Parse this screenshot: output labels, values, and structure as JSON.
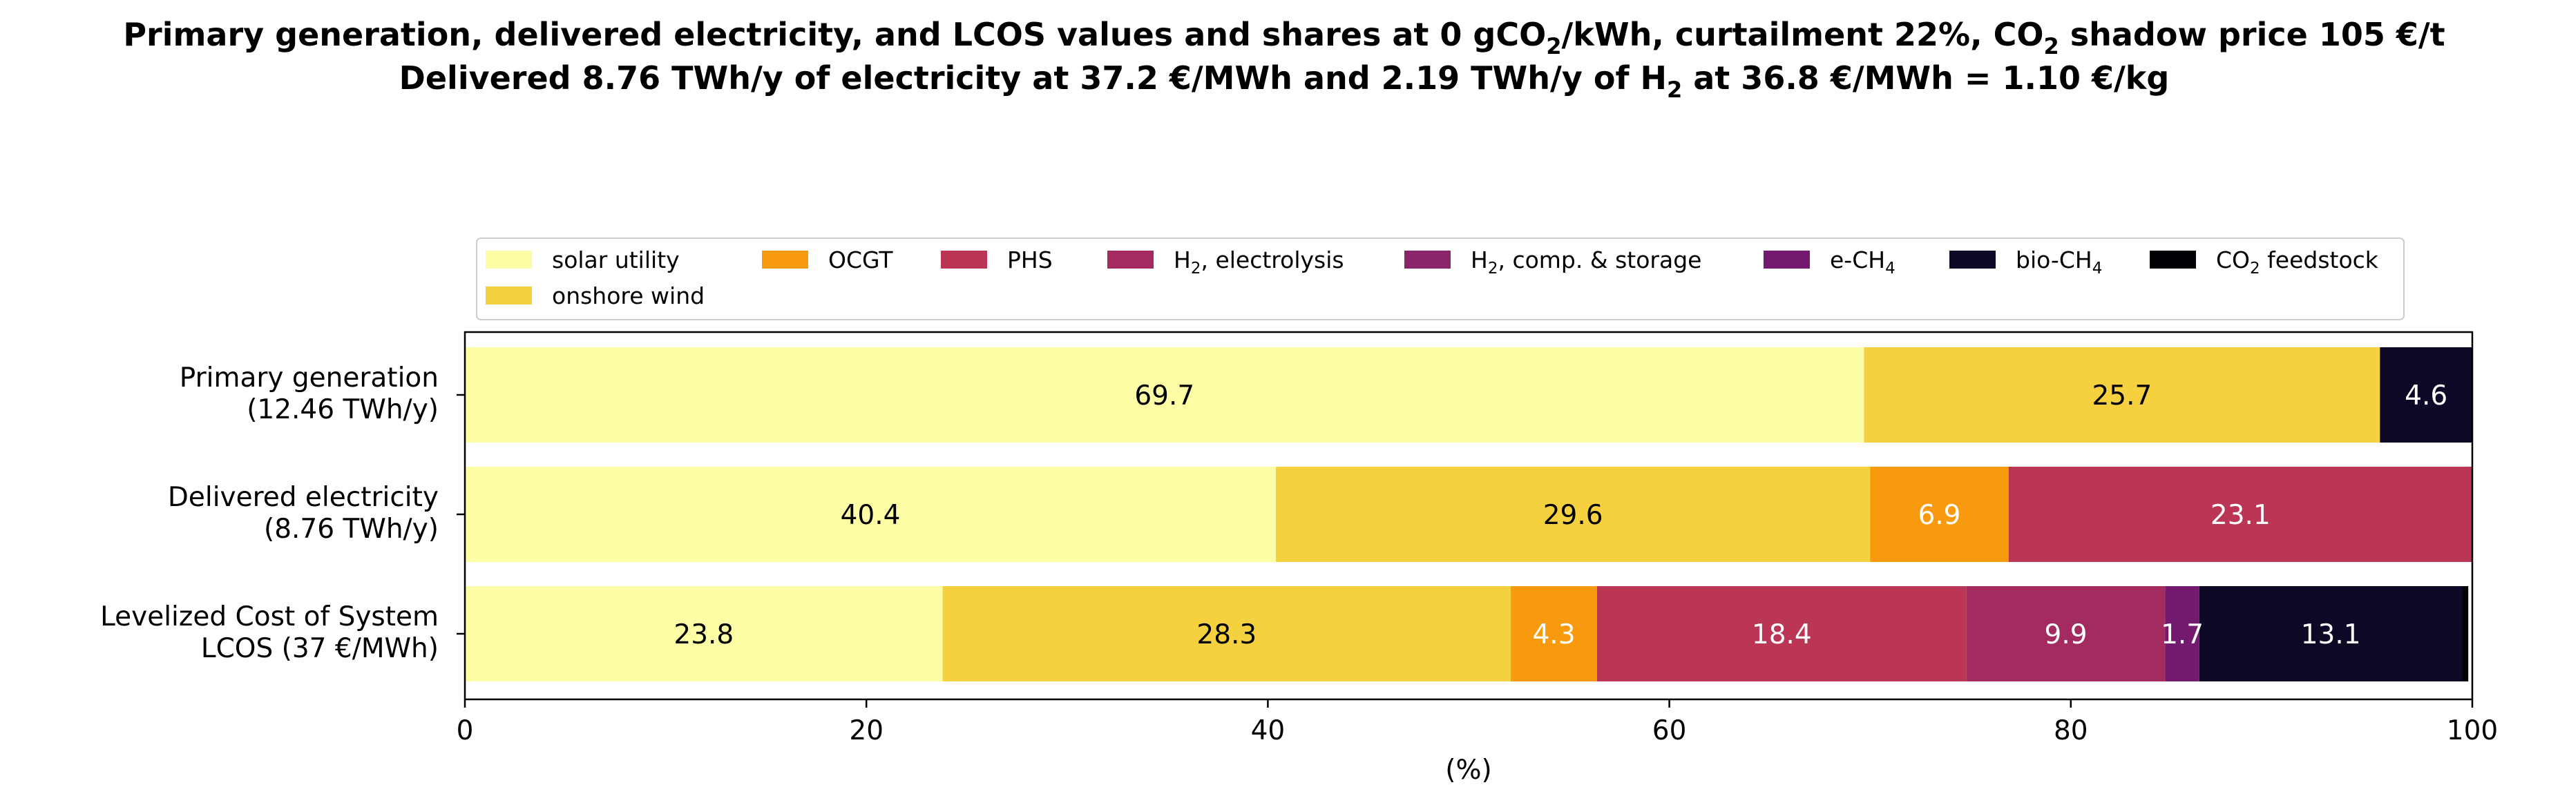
{
  "chart_data": {
    "type": "bar",
    "orientation": "horizontal",
    "stacked": true,
    "title_lines": [
      [
        {
          "t": "Primary generation, delivered electricity, and LCOS values and shares at 0 gCO"
        },
        {
          "t": "2",
          "sub": true
        },
        {
          "t": "/kWh, curtailment 22%, CO"
        },
        {
          "t": "2",
          "sub": true
        },
        {
          "t": " shadow price 105 €/t"
        }
      ],
      [
        {
          "t": "Delivered 8.76 TWh/y of electricity at 37.2 €/MWh and 2.19 TWh/y of H"
        },
        {
          "t": "2",
          "sub": true
        },
        {
          "t": " at 36.8 €/MWh = 1.10 €/kg"
        }
      ]
    ],
    "xlabel": "(%)",
    "xlim": [
      0,
      100
    ],
    "xticks": [
      0,
      20,
      40,
      60,
      80,
      100
    ],
    "grid": false,
    "legend_position": "top",
    "categories": [
      [
        "Primary generation",
        "(12.46 TWh/y)"
      ],
      [
        "Delivered electricity ",
        "(8.76 TWh/y)"
      ],
      [
        "Levelized Cost of System",
        "LCOS  (37 €/MWh)"
      ]
    ],
    "series": [
      {
        "name": [
          {
            "t": "solar utility"
          }
        ],
        "color": "#fcfda4",
        "label_color": "#000000",
        "values": [
          69.7,
          40.4,
          23.8
        ]
      },
      {
        "name": [
          {
            "t": "onshore wind"
          }
        ],
        "color": "#f5d13f",
        "label_color": "#000000",
        "values": [
          25.7,
          29.6,
          28.3
        ]
      },
      {
        "name": [
          {
            "t": "OCGT"
          }
        ],
        "color": "#f89a0d",
        "label_color": "#ffffff",
        "values": [
          0,
          6.9,
          4.3
        ]
      },
      {
        "name": [
          {
            "t": "PHS"
          }
        ],
        "color": "#bb3654",
        "label_color": "#ffffff",
        "values": [
          0,
          23.1,
          18.4
        ]
      },
      {
        "name": [
          {
            "t": "H"
          },
          {
            "t": "2",
            "sub": true
          },
          {
            "t": ", electrolysis"
          }
        ],
        "color": "#a32b60",
        "label_color": "#ffffff",
        "values": [
          0,
          0,
          9.9
        ]
      },
      {
        "name": [
          {
            "t": "H"
          },
          {
            "t": "2",
            "sub": true
          },
          {
            "t": ", comp. & storage"
          }
        ],
        "color": "#8c2469",
        "label_color": "#ffffff",
        "values": [
          0,
          0,
          0
        ]
      },
      {
        "name": [
          {
            "t": "e-CH"
          },
          {
            "t": "4",
            "sub": true
          }
        ],
        "color": "#731a6e",
        "label_color": "#ffffff",
        "values": [
          0,
          0,
          1.7
        ]
      },
      {
        "name": [
          {
            "t": "bio-CH"
          },
          {
            "t": "4",
            "sub": true
          }
        ],
        "color": "#0c0826",
        "label_color": "#ffffff",
        "values": [
          4.6,
          0,
          13.1
        ]
      },
      {
        "name": [
          {
            "t": "CO"
          },
          {
            "t": "2",
            "sub": true
          },
          {
            "t": " feedstock"
          }
        ],
        "color": "#000004",
        "label_color": "#ffffff",
        "values": [
          0,
          0,
          0.3
        ]
      }
    ]
  }
}
